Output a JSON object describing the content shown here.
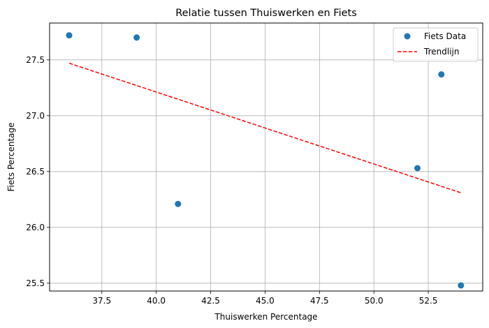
{
  "chart_data": {
    "type": "scatter",
    "title": "Relatie tussen Thuiswerken en Fiets",
    "xlabel": "Thuiswerken Percentage",
    "ylabel": "Fiets Percentage",
    "xlim": [
      35.1,
      55.0
    ],
    "ylim": [
      25.43,
      27.83
    ],
    "x_ticks": [
      37.5,
      40.0,
      42.5,
      45.0,
      47.5,
      50.0,
      52.5
    ],
    "x_tick_labels": [
      "37.5",
      "40.0",
      "42.5",
      "45.0",
      "47.5",
      "50.0",
      "52.5"
    ],
    "y_ticks": [
      25.5,
      26.0,
      26.5,
      27.0,
      27.5
    ],
    "y_tick_labels": [
      "25.5",
      "26.0",
      "26.5",
      "27.0",
      "27.5"
    ],
    "grid": true,
    "legend_position": "top-right",
    "series": [
      {
        "name": "Fiets Data",
        "kind": "scatter",
        "color": "#1f77b4",
        "points": [
          {
            "x": 36.0,
            "y": 27.72
          },
          {
            "x": 39.1,
            "y": 27.7
          },
          {
            "x": 41.0,
            "y": 26.21
          },
          {
            "x": 52.0,
            "y": 26.53
          },
          {
            "x": 53.1,
            "y": 27.37
          },
          {
            "x": 54.0,
            "y": 25.48
          }
        ]
      },
      {
        "name": "Trendlijn",
        "kind": "line",
        "color": "#ff0000",
        "style": "dashed",
        "points": [
          {
            "x": 36.0,
            "y": 27.47
          },
          {
            "x": 54.0,
            "y": 26.31
          }
        ]
      }
    ]
  }
}
